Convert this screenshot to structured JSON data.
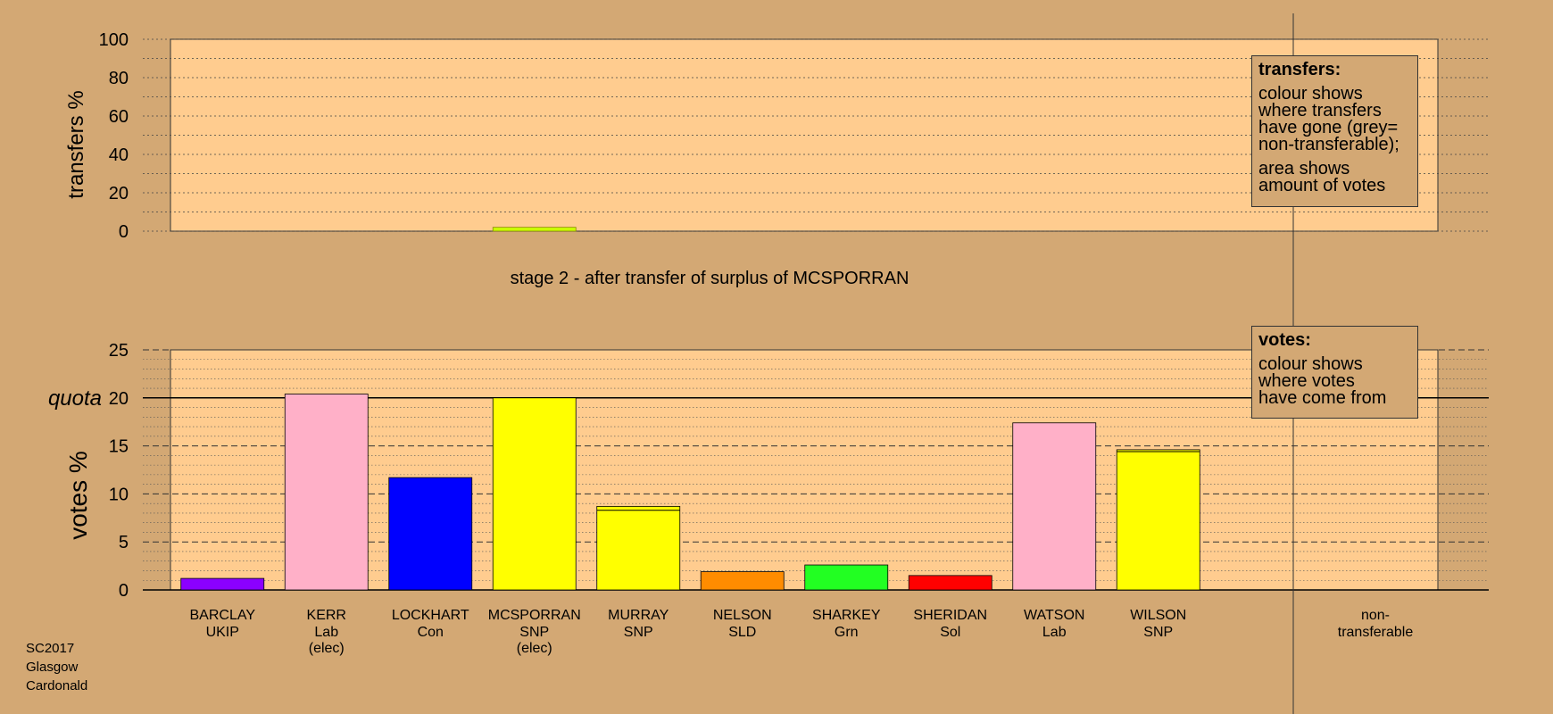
{
  "chart_data": [
    {
      "type": "bar",
      "ylabel": "transfers %",
      "ylim": [
        0,
        100
      ],
      "yticks": [
        0,
        20,
        40,
        60,
        80,
        100
      ],
      "categories": [
        "MCSPORRAN"
      ],
      "values": [
        2
      ]
    },
    {
      "type": "bar",
      "title": "stage 2 - after transfer of surplus of MCSPORRAN",
      "ylabel": "votes %",
      "ylim": [
        0,
        25
      ],
      "yticks": [
        0,
        5,
        10,
        15,
        20,
        25
      ],
      "quota": 20,
      "quota_label": "quota",
      "categories": [
        {
          "name": "BARCLAY",
          "party": "UKIP",
          "elected": "",
          "color": "#8B00FF"
        },
        {
          "name": "KERR",
          "party": "Lab",
          "elected": "(elec)",
          "color": "#FFB0C8"
        },
        {
          "name": "LOCKHART",
          "party": "Con",
          "elected": "",
          "color": "#0000FF"
        },
        {
          "name": "MCSPORRAN",
          "party": "SNP",
          "elected": "(elec)",
          "color": "#FFFF00"
        },
        {
          "name": "MURRAY",
          "party": "SNP",
          "elected": "",
          "color": "#FFFF00"
        },
        {
          "name": "NELSON",
          "party": "SLD",
          "elected": "",
          "color": "#FF8C00"
        },
        {
          "name": "SHARKEY",
          "party": "Grn",
          "elected": "",
          "color": "#22FF22"
        },
        {
          "name": "SHERIDAN",
          "party": "Sol",
          "elected": "",
          "color": "#FF0000"
        },
        {
          "name": "WATSON",
          "party": "Lab",
          "elected": "",
          "color": "#FFB0C8"
        },
        {
          "name": "WILSON",
          "party": "SNP",
          "elected": "",
          "color": "#FFFF00"
        }
      ],
      "values": [
        1.2,
        20.4,
        11.7,
        20.0,
        8.7,
        1.9,
        2.6,
        1.5,
        17.4,
        14.6
      ],
      "transfer_gain": [
        0,
        0,
        0,
        0,
        0.4,
        0,
        0,
        0,
        0,
        0.2
      ],
      "nontransferable_label": [
        "non-",
        "transferable"
      ]
    }
  ],
  "legend_transfers": {
    "title": "transfers:",
    "lines1": [
      "colour shows",
      "where transfers",
      "have gone (grey=",
      "non-transferable);"
    ],
    "lines2": [
      "area shows",
      "amount of votes"
    ]
  },
  "legend_votes": {
    "title": "votes:",
    "lines": [
      "colour shows",
      "where votes",
      "have come from"
    ]
  },
  "footer": [
    "SC2017",
    "Glasgow",
    "Cardonald"
  ]
}
